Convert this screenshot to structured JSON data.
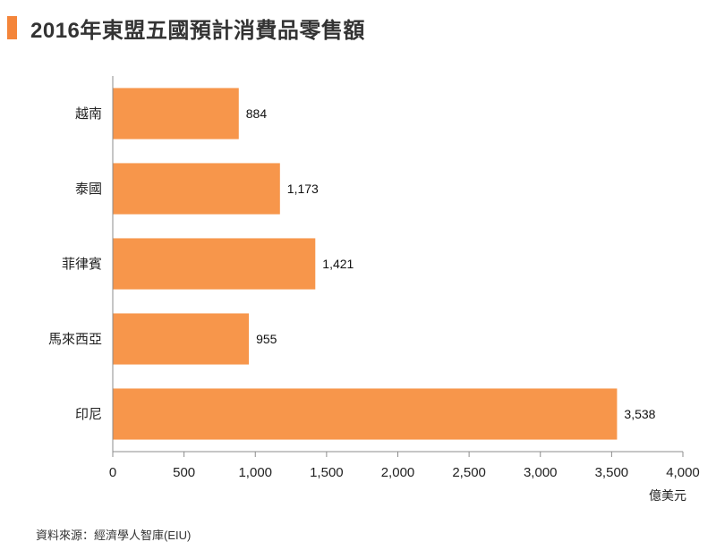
{
  "header": {
    "title": "2016年東盟五國預計消費品零售額"
  },
  "footer": {
    "source": "資料來源：經濟學人智庫(EIU)"
  },
  "colors": {
    "accent": "#f4853a",
    "bar": "#f7964b",
    "axis": "#8c8c8c"
  },
  "chart_data": {
    "type": "bar",
    "orientation": "horizontal",
    "title": "2016年東盟五國預計消費品零售額",
    "categories": [
      "越南",
      "泰國",
      "菲律賓",
      "馬來西亞",
      "印尼"
    ],
    "values": [
      884,
      1173,
      1421,
      955,
      3538
    ],
    "value_labels": [
      "884",
      "1,173",
      "1,421",
      "955",
      "3,538"
    ],
    "xlim": [
      0,
      4000
    ],
    "xticks": [
      0,
      500,
      1000,
      1500,
      2000,
      2500,
      3000,
      3500,
      4000
    ],
    "xtick_labels": [
      "0",
      "500",
      "1,000",
      "1,500",
      "2,000",
      "2,500",
      "3,000",
      "3,500",
      "4,000"
    ],
    "xlabel": "億美元",
    "ylabel": "",
    "grid": false
  }
}
